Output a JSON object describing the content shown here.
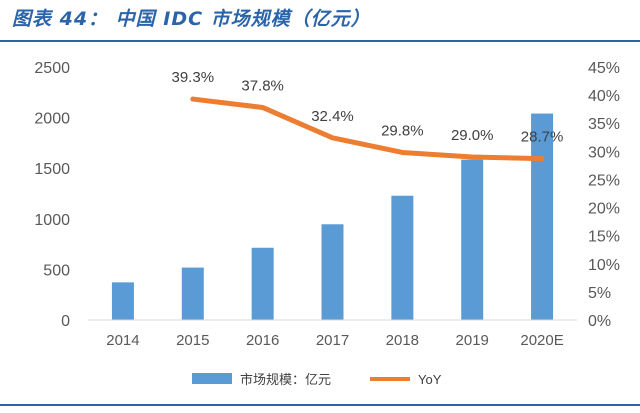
{
  "figure": {
    "title": "图表 44： 中国 IDC 市场规模（亿元）"
  },
  "colors": {
    "bar": "#5b9bd5",
    "line": "#ed7d31",
    "rule": "#2b64a8",
    "axis_text": "#595959"
  },
  "chart_data": {
    "type": "bar",
    "categories": [
      "2014",
      "2015",
      "2016",
      "2017",
      "2018",
      "2019",
      "2020E"
    ],
    "series": [
      {
        "name": "市场规模：亿元",
        "type": "bar",
        "axis": "left",
        "values": [
          372,
          518,
          714,
          946,
          1228,
          1585,
          2040
        ]
      },
      {
        "name": "YoY",
        "type": "line",
        "axis": "right",
        "values": [
          null,
          39.3,
          37.8,
          32.4,
          29.8,
          29.0,
          28.7
        ],
        "labels": [
          "",
          "39.3%",
          "37.8%",
          "32.4%",
          "29.8%",
          "29.0%",
          "28.7%"
        ]
      }
    ],
    "y_left": {
      "min": 0,
      "max": 2500,
      "ticks": [
        "0",
        "500",
        "1000",
        "1500",
        "2000",
        "2500"
      ]
    },
    "y_right": {
      "min": 0,
      "max": 45,
      "ticks": [
        "0%",
        "5%",
        "10%",
        "15%",
        "20%",
        "25%",
        "30%",
        "35%",
        "40%",
        "45%"
      ]
    },
    "legend": {
      "position": "bottom"
    },
    "grid": false
  }
}
